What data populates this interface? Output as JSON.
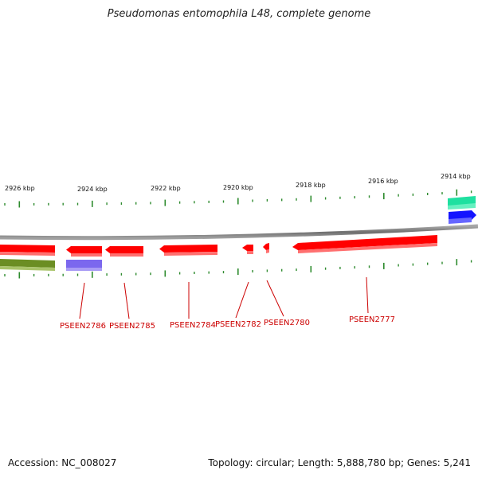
{
  "title": "Pseudomonas entomophila L48, complete genome",
  "footer": {
    "accession": "Accession: NC_008027",
    "summary": "Topology: circular; Length: 5,888,780 bp; Genes: 5,241"
  },
  "scale_labels": [
    "2926 kbp",
    "2924 kbp",
    "2922 kbp",
    "2920 kbp",
    "2918 kbp",
    "2916 kbp",
    "2914 kbp"
  ],
  "gene_labels": [
    "PSEEN2786",
    "PSEEN2785",
    "PSEEN2784",
    "PSEEN2782",
    "PSEEN2780",
    "PSEEN2777"
  ],
  "colors": {
    "forward_gene": "#ff0000",
    "reverse_gene": "#ff0000",
    "olive_feature": "#6b8e23",
    "purple_feature": "#7b68ee",
    "teal_feature": "#1fe0a0",
    "blue_feature": "#0000ff",
    "tick": "#2e8b2e",
    "backbone": "#808080",
    "label": "#cc0000"
  }
}
